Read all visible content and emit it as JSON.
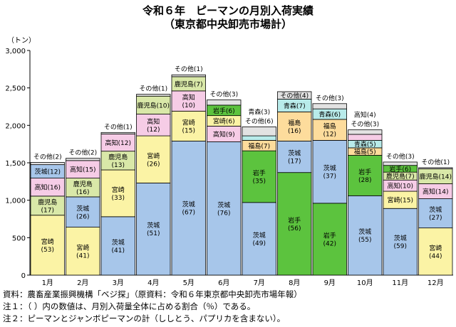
{
  "title": "令和６年　ピーマンの月別入荷実績",
  "subtitle": "（東京都中央卸売市場計）",
  "colors": {
    "宮崎": "#fbf3a5",
    "茨城": "#a7c6ea",
    "岩手": "#5cc33e",
    "鹿児島": "#d9e8a8",
    "高知": "#f6cce6",
    "福島": "#fddc9c",
    "青森": "#b8ebea",
    "その他": "#e2e2e2"
  },
  "chart_data": {
    "type": "bar",
    "stacked": true,
    "unit_label": "（トン）",
    "categories": [
      "1月",
      "2月",
      "3月",
      "4月",
      "5月",
      "6月",
      "7月",
      "8月",
      "9月",
      "10月",
      "11月",
      "12月"
    ],
    "ylim": [
      0,
      3000
    ],
    "yticks": [
      "0",
      "500",
      "1,000",
      "1,500",
      "2,000",
      "2,500",
      "3,000"
    ],
    "grid": false,
    "bars": [
      {
        "month": "1月",
        "segments": [
          {
            "name": "宮崎",
            "value": 800,
            "label": "宮崎",
            "pct": "(53)"
          },
          {
            "name": "鹿児島",
            "value": 255,
            "label": "鹿児島",
            "pct": "(17)"
          },
          {
            "name": "高知",
            "value": 240,
            "label": "高知",
            "pct": "(16)"
          },
          {
            "name": "茨城",
            "value": 180,
            "label": "茨城",
            "pct": "(12)"
          },
          {
            "name": "その他",
            "value": 30,
            "label": "その他",
            "pct": "(2)",
            "outside": true
          }
        ]
      },
      {
        "month": "2月",
        "segments": [
          {
            "name": "宮崎",
            "value": 640,
            "label": "宮崎",
            "pct": "(41)"
          },
          {
            "name": "茨城",
            "value": 405,
            "label": "茨城",
            "pct": "(26)"
          },
          {
            "name": "鹿児島",
            "value": 250,
            "label": "鹿児島",
            "pct": "(16)"
          },
          {
            "name": "高知",
            "value": 235,
            "label": "高知",
            "pct": "(15)"
          },
          {
            "name": "その他",
            "value": 30,
            "label": "その他",
            "pct": "(2)",
            "outside": true
          }
        ]
      },
      {
        "month": "3月",
        "segments": [
          {
            "name": "茨城",
            "value": 780,
            "label": "茨城",
            "pct": "(41)"
          },
          {
            "name": "宮崎",
            "value": 625,
            "label": "宮崎",
            "pct": "(33)"
          },
          {
            "name": "鹿児島",
            "value": 250,
            "label": "鹿児島",
            "pct": "(13)"
          },
          {
            "name": "高知",
            "value": 230,
            "label": "高知",
            "pct": "(12)"
          },
          {
            "name": "その他",
            "value": 20,
            "label": "その他",
            "pct": "(1)",
            "outside": true
          }
        ]
      },
      {
        "month": "4月",
        "segments": [
          {
            "name": "茨城",
            "value": 1230,
            "label": "茨城",
            "pct": "(51)"
          },
          {
            "name": "宮崎",
            "value": 630,
            "label": "宮崎",
            "pct": "(26)"
          },
          {
            "name": "高知",
            "value": 290,
            "label": "高知",
            "pct": "(12)"
          },
          {
            "name": "鹿児島",
            "value": 240,
            "label": "鹿児島",
            "pct": "(10)"
          },
          {
            "name": "その他",
            "value": 25,
            "label": "その他",
            "pct": "(1)",
            "outside": true
          }
        ]
      },
      {
        "month": "5月",
        "segments": [
          {
            "name": "茨城",
            "value": 1790,
            "label": "茨城",
            "pct": "(67)"
          },
          {
            "name": "宮崎",
            "value": 400,
            "label": "宮崎",
            "pct": "(15)"
          },
          {
            "name": "高知",
            "value": 270,
            "label": "高知",
            "pct": "(10)"
          },
          {
            "name": "鹿児島",
            "value": 190,
            "label": "鹿児島",
            "pct": "(7)"
          },
          {
            "name": "その他",
            "value": 25,
            "label": "その他",
            "pct": "(1)",
            "outside": true
          }
        ]
      },
      {
        "month": "6月",
        "segments": [
          {
            "name": "茨城",
            "value": 1780,
            "label": "茨城",
            "pct": "(76)"
          },
          {
            "name": "高知",
            "value": 210,
            "label": "高知",
            "pct": "(9)"
          },
          {
            "name": "宮崎",
            "value": 140,
            "label": "宮崎",
            "pct": "(6)"
          },
          {
            "name": "岩手",
            "value": 140,
            "label": "岩手",
            "pct": "(6)"
          },
          {
            "name": "その他",
            "value": 70,
            "label": "その他",
            "pct": "(3)",
            "outside": true
          }
        ]
      },
      {
        "month": "7月",
        "segments": [
          {
            "name": "茨城",
            "value": 970,
            "label": "茨城",
            "pct": "(49)"
          },
          {
            "name": "岩手",
            "value": 690,
            "label": "岩手",
            "pct": "(35)"
          },
          {
            "name": "福島",
            "value": 140,
            "label": "福島",
            "pct": "(7)"
          },
          {
            "name": "青森",
            "value": 60,
            "label": "青森",
            "pct": "(3)",
            "outside": true
          },
          {
            "name": "その他",
            "value": 120,
            "label": "その他",
            "pct": "(6)",
            "outside": true
          }
        ]
      },
      {
        "month": "8月",
        "segments": [
          {
            "name": "岩手",
            "value": 1370,
            "label": "岩手",
            "pct": "(56)"
          },
          {
            "name": "茨城",
            "value": 420,
            "label": "茨城",
            "pct": "(17)"
          },
          {
            "name": "福島",
            "value": 390,
            "label": "福島",
            "pct": "(16)"
          },
          {
            "name": "青森",
            "value": 170,
            "label": "青森",
            "pct": "(7)"
          },
          {
            "name": "その他",
            "value": 100,
            "label": "その他",
            "pct": "(4)"
          }
        ]
      },
      {
        "month": "9月",
        "segments": [
          {
            "name": "岩手",
            "value": 960,
            "label": "岩手",
            "pct": "(42)"
          },
          {
            "name": "茨城",
            "value": 840,
            "label": "茨城",
            "pct": "(37)"
          },
          {
            "name": "福島",
            "value": 280,
            "label": "福島",
            "pct": "(12)"
          },
          {
            "name": "青森",
            "value": 140,
            "label": "青森",
            "pct": "(6)"
          },
          {
            "name": "その他",
            "value": 70,
            "label": "その他",
            "pct": "(3)",
            "outside": true
          }
        ]
      },
      {
        "month": "10月",
        "segments": [
          {
            "name": "茨城",
            "value": 1060,
            "label": "茨城",
            "pct": "(55)"
          },
          {
            "name": "岩手",
            "value": 540,
            "label": "岩手",
            "pct": "(28)"
          },
          {
            "name": "福島",
            "value": 100,
            "label": "福島",
            "pct": "(5)"
          },
          {
            "name": "青森",
            "value": 100,
            "label": "青森",
            "pct": "(5)"
          },
          {
            "name": "高知",
            "value": 80,
            "label": "高知",
            "pct": "(4)",
            "outside": true
          },
          {
            "name": "その他",
            "value": 60,
            "label": "その他",
            "pct": "(3)",
            "outside": true
          }
        ]
      },
      {
        "month": "11月",
        "segments": [
          {
            "name": "茨城",
            "value": 890,
            "label": "茨城",
            "pct": "(59)"
          },
          {
            "name": "宮崎",
            "value": 230,
            "label": "宮崎",
            "pct": "(15)"
          },
          {
            "name": "高知",
            "value": 150,
            "label": "高知",
            "pct": "(10)"
          },
          {
            "name": "鹿児島",
            "value": 105,
            "label": "鹿児島",
            "pct": "(7)"
          },
          {
            "name": "岩手",
            "value": 90,
            "label": "岩手",
            "pct": "(6)"
          },
          {
            "name": "その他",
            "value": 45,
            "label": "その他",
            "pct": "(3)",
            "outside": true
          }
        ]
      },
      {
        "month": "12月",
        "segments": [
          {
            "name": "宮崎",
            "value": 630,
            "label": "宮崎",
            "pct": "(44)"
          },
          {
            "name": "茨城",
            "value": 390,
            "label": "茨城",
            "pct": "(27)"
          },
          {
            "name": "高知",
            "value": 200,
            "label": "高知",
            "pct": "(14)"
          },
          {
            "name": "鹿児島",
            "value": 200,
            "label": "鹿児島",
            "pct": "(14)"
          },
          {
            "name": "その他",
            "value": 15,
            "label": "その他",
            "pct": "(1)",
            "outside": true
          }
        ]
      }
    ]
  },
  "notes": {
    "source": "資料：農畜産業振興機構「ベジ探」（原資料：令和６年東京都中央卸売市場年報）",
    "note1": "注１：（ ）内の数値は、月別入荷量全体に占める割合（％）である。",
    "note2": "注２：ピーマンとジャンボピーマンの計（ししとう、パプリカを含まない）。"
  }
}
